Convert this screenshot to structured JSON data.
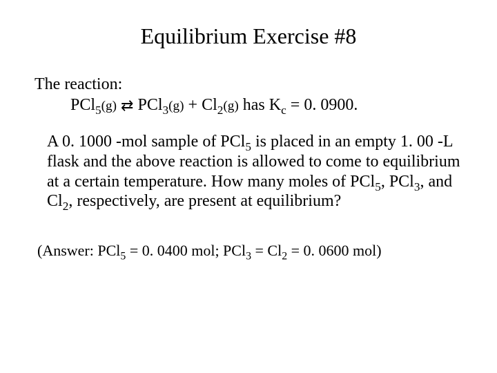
{
  "title": "Equilibrium Exercise #8",
  "reaction": {
    "intro": "The reaction:",
    "pcl5": "PCl",
    "pcl5_sub": "5",
    "g1": "(g)",
    "arrow": "⇄",
    "pcl3": "PCl",
    "pcl3_sub": "3",
    "g2": "(g)",
    "plus": " + ",
    "cl2": "Cl",
    "cl2_sub": "2",
    "g3": "(g)",
    "has": "  has K",
    "kc_sub": "c",
    "equals": " = 0. 0900."
  },
  "body": {
    "p1a": "A 0. 1000 -mol sample of PCl",
    "p1a_sub": "5",
    "p1b": " is placed in an empty 1. 00 -L flask and the above reaction is allowed to come to equilibrium at a certain temperature. How many moles of PCl",
    "p1b_sub": "5",
    "p1c": ", PCl",
    "p1c_sub": "3",
    "p1d": ", and Cl",
    "p1d_sub": "2",
    "p1e": ", respectively, are present at equilibrium?"
  },
  "answer": {
    "a1": "(Answer: PCl",
    "a1_sub": "5",
    "a2": " = 0. 0400 mol;  PCl",
    "a2_sub": "3",
    "a3": " =  Cl",
    "a3_sub": "2",
    "a4": " = 0. 0600 mol)"
  },
  "colors": {
    "background": "#ffffff",
    "text": "#000000"
  },
  "typography": {
    "font_family": "Times New Roman",
    "title_fontsize": 32,
    "body_fontsize": 24,
    "answer_fontsize": 22
  }
}
